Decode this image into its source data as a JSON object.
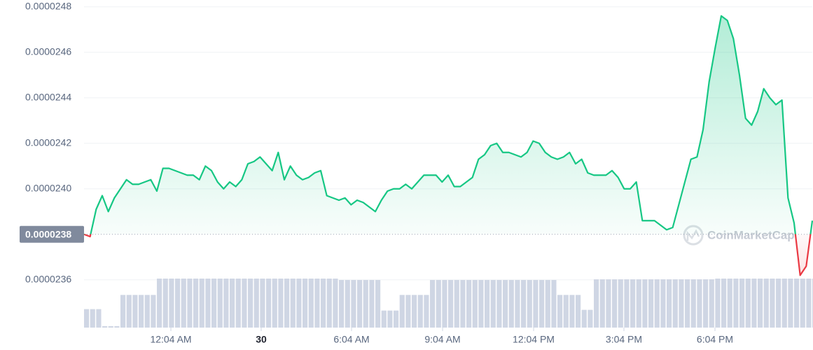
{
  "chart_data": {
    "type": "line",
    "values": [
      2.38e-05,
      2.379e-05,
      2.391e-05,
      2.397e-05,
      2.39e-05,
      2.396e-05,
      2.4e-05,
      2.404e-05,
      2.402e-05,
      2.402e-05,
      2.403e-05,
      2.404e-05,
      2.399e-05,
      2.409e-05,
      2.409e-05,
      2.408e-05,
      2.407e-05,
      2.406e-05,
      2.406e-05,
      2.404e-05,
      2.41e-05,
      2.408e-05,
      2.403e-05,
      2.4e-05,
      2.403e-05,
      2.401e-05,
      2.404e-05,
      2.411e-05,
      2.412e-05,
      2.414e-05,
      2.411e-05,
      2.408e-05,
      2.416e-05,
      2.404e-05,
      2.41e-05,
      2.406e-05,
      2.404e-05,
      2.405e-05,
      2.407e-05,
      2.408e-05,
      2.397e-05,
      2.396e-05,
      2.395e-05,
      2.396e-05,
      2.393e-05,
      2.395e-05,
      2.394e-05,
      2.392e-05,
      2.39e-05,
      2.395e-05,
      2.399e-05,
      2.4e-05,
      2.4e-05,
      2.402e-05,
      2.4e-05,
      2.403e-05,
      2.406e-05,
      2.406e-05,
      2.406e-05,
      2.403e-05,
      2.406e-05,
      2.401e-05,
      2.401e-05,
      2.403e-05,
      2.405e-05,
      2.413e-05,
      2.415e-05,
      2.419e-05,
      2.42e-05,
      2.416e-05,
      2.416e-05,
      2.415e-05,
      2.414e-05,
      2.416e-05,
      2.421e-05,
      2.42e-05,
      2.416e-05,
      2.414e-05,
      2.413e-05,
      2.414e-05,
      2.416e-05,
      2.411e-05,
      2.413e-05,
      2.407e-05,
      2.406e-05,
      2.406e-05,
      2.406e-05,
      2.408e-05,
      2.405e-05,
      2.4e-05,
      2.4e-05,
      2.403e-05,
      2.386e-05,
      2.386e-05,
      2.386e-05,
      2.384e-05,
      2.382e-05,
      2.383e-05,
      2.393e-05,
      2.403e-05,
      2.413e-05,
      2.414e-05,
      2.426e-05,
      2.447e-05,
      2.462e-05,
      2.476e-05,
      2.474e-05,
      2.466e-05,
      2.45e-05,
      2.431e-05,
      2.428e-05,
      2.434e-05,
      2.444e-05,
      2.44e-05,
      2.437e-05,
      2.439e-05,
      2.396e-05,
      2.385e-05,
      2.362e-05,
      2.366e-05,
      2.386e-05
    ],
    "volume": [
      26,
      26,
      26,
      2,
      2,
      2,
      46,
      46,
      46,
      46,
      46,
      46,
      69,
      69,
      69,
      69,
      69,
      69,
      69,
      69,
      69,
      69,
      69,
      69,
      69,
      69,
      69,
      69,
      69,
      69,
      69,
      69,
      69,
      69,
      69,
      69,
      69,
      69,
      69,
      69,
      69,
      69,
      67,
      67,
      67,
      67,
      67,
      67,
      67,
      24,
      24,
      24,
      46,
      46,
      46,
      46,
      46,
      67,
      67,
      67,
      67,
      67,
      67,
      67,
      67,
      67,
      67,
      67,
      67,
      67,
      67,
      67,
      67,
      67,
      67,
      67,
      67,
      67,
      46,
      46,
      46,
      46,
      25,
      25,
      68,
      68,
      68,
      68,
      68,
      68,
      68,
      68,
      68,
      68,
      68,
      68,
      68,
      68,
      68,
      68,
      68,
      68,
      68,
      68,
      69,
      69,
      69,
      69,
      69,
      69,
      69,
      69,
      69,
      69,
      69,
      69,
      69,
      69,
      69,
      69,
      69
    ],
    "up_color": "#16c784",
    "down_color": "#ea3943",
    "volume_color": "#cfd6e4",
    "ylim": [
      2.339e-05,
      2.483e-05
    ],
    "yticks": [
      2.36e-05,
      {
        "value": 2.4e-05,
        "label": "0.0000240"
      },
      2.42e-05,
      2.44e-05,
      2.46e-05,
      2.48e-05
    ],
    "reference": {
      "value": 2.38e-05,
      "label": "0.0000238"
    },
    "xticks": [
      {
        "value": 14.31,
        "label": "12:04 AM"
      },
      {
        "value": 29.19,
        "label": "30"
      },
      {
        "value": 44.08,
        "label": "6:04 AM"
      },
      {
        "value": 59.08,
        "label": "9:04 AM"
      },
      {
        "value": 74.08,
        "label": "12:04 PM"
      },
      {
        "value": 88.96,
        "label": "3:04 PM"
      },
      {
        "value": 103.96,
        "label": "6:04 PM"
      }
    ],
    "grid": true,
    "watermark": "CoinMarketCap"
  }
}
